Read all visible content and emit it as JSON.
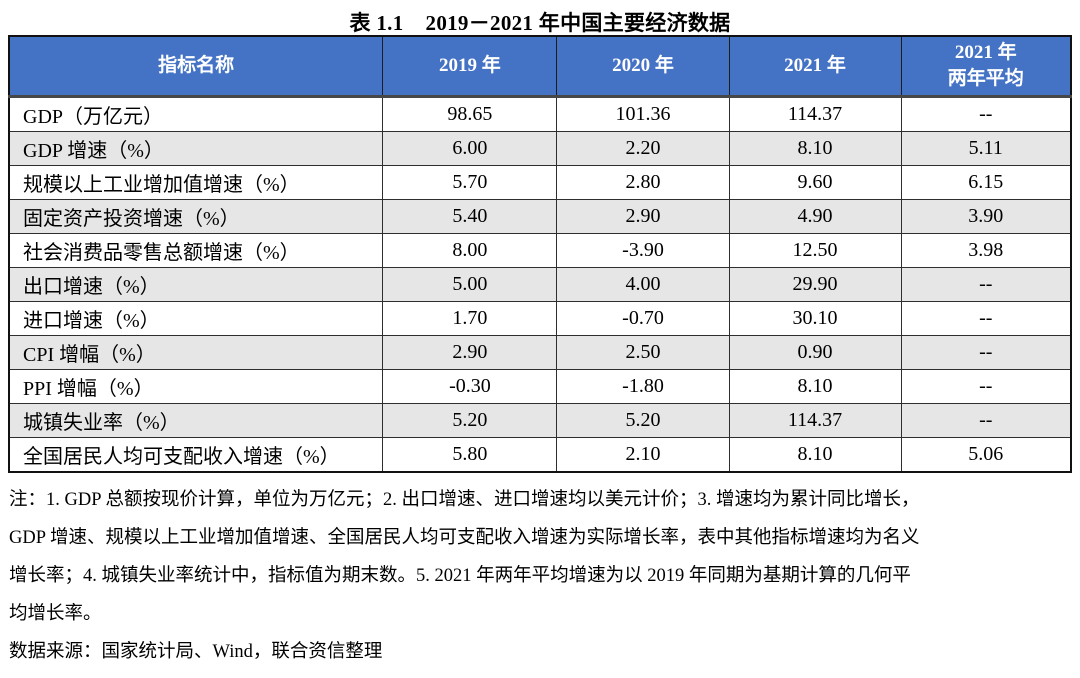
{
  "title": {
    "prefix": "表 1.1",
    "text": "2019－2021 年中国主要经济数据"
  },
  "colors": {
    "header_bg": "#4472C4",
    "header_fg": "#FFFFFF",
    "stripe": "#E6E6E6",
    "border": "#2E2E2E"
  },
  "table": {
    "columns": [
      "指标名称",
      "2019 年",
      "2020 年",
      "2021 年",
      "2021 年\n两年平均"
    ],
    "rows": [
      {
        "label": "GDP（万亿元）",
        "values": [
          "98.65",
          "101.36",
          "114.37",
          "--"
        ]
      },
      {
        "label": "GDP 增速（%）",
        "values": [
          "6.00",
          "2.20",
          "8.10",
          "5.11"
        ]
      },
      {
        "label": "规模以上工业增加值增速（%）",
        "values": [
          "5.70",
          "2.80",
          "9.60",
          "6.15"
        ]
      },
      {
        "label": "固定资产投资增速（%）",
        "values": [
          "5.40",
          "2.90",
          "4.90",
          "3.90"
        ]
      },
      {
        "label": "社会消费品零售总额增速（%）",
        "values": [
          "8.00",
          "-3.90",
          "12.50",
          "3.98"
        ]
      },
      {
        "label": "出口增速（%）",
        "values": [
          "5.00",
          "4.00",
          "29.90",
          "--"
        ]
      },
      {
        "label": "进口增速（%）",
        "values": [
          "1.70",
          "-0.70",
          "30.10",
          "--"
        ]
      },
      {
        "label": "CPI 增幅（%）",
        "values": [
          "2.90",
          "2.50",
          "0.90",
          "--"
        ]
      },
      {
        "label": "PPI 增幅（%）",
        "values": [
          "-0.30",
          "-1.80",
          "8.10",
          "--"
        ]
      },
      {
        "label": "城镇失业率（%）",
        "values": [
          "5.20",
          "5.20",
          "114.37",
          "--"
        ]
      },
      {
        "label": "全国居民人均可支配收入增速（%）",
        "values": [
          "5.80",
          "2.10",
          "8.10",
          "5.06"
        ]
      }
    ]
  },
  "notes": {
    "lines": [
      "注：1. GDP 总额按现价计算，单位为万亿元；2. 出口增速、进口增速均以美元计价；3. 增速均为累计同比增长，",
      "GDP 增速、规模以上工业增加值增速、全国居民人均可支配收入增速为实际增长率，表中其他指标增速均为名义",
      "增长率；4. 城镇失业率统计中，指标值为期末数。5. 2021 年两年平均增速为以 2019 年同期为基期计算的几何平",
      "均增长率。"
    ]
  },
  "source": {
    "text": "数据来源：国家统计局、Wind，联合资信整理"
  }
}
